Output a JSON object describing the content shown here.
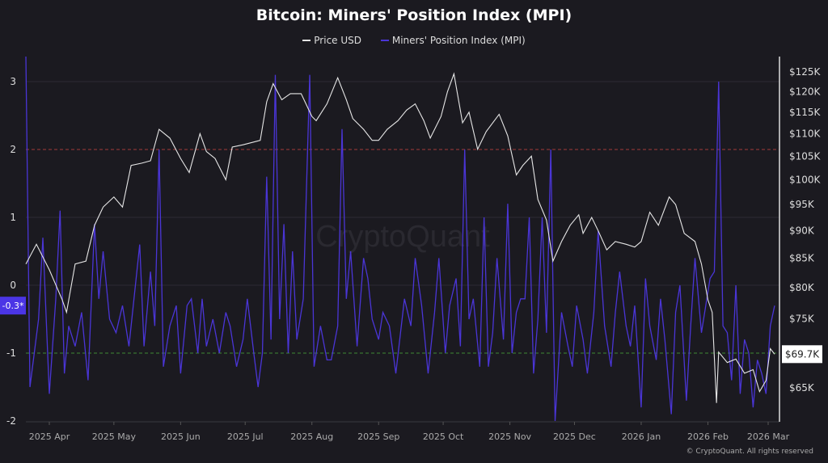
{
  "chart_data": {
    "type": "line",
    "title": "Bitcoin: Miners' Position Index (MPI)",
    "legend_position": "top-center",
    "grid": true,
    "x_ticks": [
      "2025 Apr",
      "2025 May",
      "2025 Jun",
      "2025 Jul",
      "2025 Aug",
      "2025 Sep",
      "2025 Oct",
      "2025 Nov",
      "2025 Dec",
      "2026 Jan",
      "2026 Feb",
      "2026 Mar"
    ],
    "x_tick_dates": [
      "2025-04-01",
      "2025-05-01",
      "2025-06-01",
      "2025-07-01",
      "2025-08-01",
      "2025-09-01",
      "2025-10-01",
      "2025-11-01",
      "2025-12-01",
      "2026-01-01",
      "2026-02-01",
      "2026-03-01"
    ],
    "left_axis": {
      "ticks": [
        3,
        2,
        1,
        0,
        -1,
        -2
      ],
      "ylim": [
        -2.1,
        3.3
      ]
    },
    "right_axis": {
      "scale": "log",
      "ticks": [
        "$125K",
        "$120K",
        "$115K",
        "$110K",
        "$105K",
        "$100K",
        "$95K",
        "$90K",
        "$85K",
        "$80K",
        "$75K",
        "$65K"
      ],
      "tick_values": [
        125000,
        120000,
        115000,
        110000,
        105000,
        100000,
        95000,
        90000,
        85000,
        80000,
        75000,
        65000
      ]
    },
    "reference_lines": [
      {
        "axis": "left",
        "value": 2,
        "color": "#a33a3a"
      },
      {
        "axis": "left",
        "value": -1,
        "color": "#3f8a34"
      }
    ],
    "series": [
      {
        "name": "Price USD",
        "axis": "right",
        "color": "#e6e6e6",
        "x": [
          "2025-03-21",
          "2025-03-26",
          "2025-04-01",
          "2025-04-07",
          "2025-04-09",
          "2025-04-13",
          "2025-04-18",
          "2025-04-22",
          "2025-04-26",
          "2025-05-01",
          "2025-05-05",
          "2025-05-09",
          "2025-05-14",
          "2025-05-18",
          "2025-05-22",
          "2025-05-27",
          "2025-06-01",
          "2025-06-05",
          "2025-06-10",
          "2025-06-13",
          "2025-06-17",
          "2025-06-22",
          "2025-06-25",
          "2025-06-30",
          "2025-07-04",
          "2025-07-08",
          "2025-07-11",
          "2025-07-14",
          "2025-07-18",
          "2025-07-22",
          "2025-07-27",
          "2025-08-01",
          "2025-08-03",
          "2025-08-08",
          "2025-08-13",
          "2025-08-17",
          "2025-08-20",
          "2025-08-25",
          "2025-08-29",
          "2025-09-01",
          "2025-09-05",
          "2025-09-10",
          "2025-09-14",
          "2025-09-18",
          "2025-09-22",
          "2025-09-25",
          "2025-09-30",
          "2025-10-03",
          "2025-10-06",
          "2025-10-10",
          "2025-10-13",
          "2025-10-17",
          "2025-10-21",
          "2025-10-27",
          "2025-10-31",
          "2025-11-04",
          "2025-11-07",
          "2025-11-11",
          "2025-11-14",
          "2025-11-18",
          "2025-11-21",
          "2025-11-25",
          "2025-11-29",
          "2025-12-03",
          "2025-12-05",
          "2025-12-09",
          "2025-12-12",
          "2025-12-16",
          "2025-12-20",
          "2025-12-25",
          "2025-12-29",
          "2026-01-01",
          "2026-01-05",
          "2026-01-09",
          "2026-01-14",
          "2026-01-17",
          "2026-01-21",
          "2026-01-26",
          "2026-01-29",
          "2026-02-01",
          "2026-02-03",
          "2026-02-05",
          "2026-02-06",
          "2026-02-10",
          "2026-02-14",
          "2026-02-18",
          "2026-02-22",
          "2026-02-25",
          "2026-02-28",
          "2026-03-02",
          "2026-03-04"
        ],
        "values": [
          84000,
          87500,
          83000,
          78000,
          76000,
          84000,
          84500,
          91000,
          94500,
          96500,
          94500,
          103000,
          103500,
          104000,
          111000,
          109000,
          104500,
          101500,
          110000,
          106000,
          104500,
          100000,
          107000,
          107500,
          108000,
          108500,
          117500,
          122000,
          118000,
          119500,
          119500,
          114000,
          113000,
          117000,
          123500,
          118000,
          113500,
          111000,
          108500,
          108500,
          111000,
          113000,
          115500,
          117000,
          113000,
          109000,
          114000,
          120000,
          124500,
          112500,
          115000,
          106500,
          110500,
          114500,
          109500,
          101000,
          103000,
          105000,
          96000,
          92000,
          84500,
          88000,
          91000,
          93000,
          89500,
          92500,
          90000,
          86500,
          88000,
          87500,
          87000,
          88000,
          93500,
          91000,
          96500,
          95000,
          89500,
          88000,
          84000,
          78000,
          76000,
          63000,
          70000,
          68500,
          69000,
          67000,
          67500,
          64500,
          66000,
          70500,
          69700
        ]
      },
      {
        "name": "Miners' Position Index (MPI)",
        "axis": "left",
        "color": "#4a35d6",
        "x": [
          "2025-03-21",
          "2025-03-23",
          "2025-03-27",
          "2025-03-29",
          "2025-04-01",
          "2025-04-04",
          "2025-04-06",
          "2025-04-08",
          "2025-04-10",
          "2025-04-13",
          "2025-04-16",
          "2025-04-19",
          "2025-04-22",
          "2025-04-24",
          "2025-04-26",
          "2025-04-29",
          "2025-05-02",
          "2025-05-05",
          "2025-05-08",
          "2025-05-10",
          "2025-05-13",
          "2025-05-15",
          "2025-05-18",
          "2025-05-20",
          "2025-05-22",
          "2025-05-24",
          "2025-05-27",
          "2025-05-30",
          "2025-06-01",
          "2025-06-04",
          "2025-06-06",
          "2025-06-09",
          "2025-06-11",
          "2025-06-13",
          "2025-06-16",
          "2025-06-19",
          "2025-06-22",
          "2025-06-24",
          "2025-06-27",
          "2025-06-30",
          "2025-07-02",
          "2025-07-05",
          "2025-07-07",
          "2025-07-09",
          "2025-07-11",
          "2025-07-13",
          "2025-07-15",
          "2025-07-17",
          "2025-07-19",
          "2025-07-21",
          "2025-07-23",
          "2025-07-25",
          "2025-07-28",
          "2025-07-31",
          "2025-08-02",
          "2025-08-05",
          "2025-08-08",
          "2025-08-10",
          "2025-08-13",
          "2025-08-15",
          "2025-08-17",
          "2025-08-19",
          "2025-08-22",
          "2025-08-25",
          "2025-08-27",
          "2025-08-29",
          "2025-09-01",
          "2025-09-03",
          "2025-09-06",
          "2025-09-09",
          "2025-09-13",
          "2025-09-16",
          "2025-09-18",
          "2025-09-21",
          "2025-09-24",
          "2025-09-27",
          "2025-09-29",
          "2025-10-02",
          "2025-10-04",
          "2025-10-07",
          "2025-10-09",
          "2025-10-11",
          "2025-10-13",
          "2025-10-15",
          "2025-10-18",
          "2025-10-20",
          "2025-10-22",
          "2025-10-24",
          "2025-10-26",
          "2025-10-29",
          "2025-10-31",
          "2025-11-02",
          "2025-11-04",
          "2025-11-06",
          "2025-11-08",
          "2025-11-10",
          "2025-11-12",
          "2025-11-14",
          "2025-11-16",
          "2025-11-18",
          "2025-11-20",
          "2025-11-22",
          "2025-11-25",
          "2025-11-28",
          "2025-11-30",
          "2025-12-02",
          "2025-12-05",
          "2025-12-07",
          "2025-12-10",
          "2025-12-12",
          "2025-12-15",
          "2025-12-18",
          "2025-12-20",
          "2025-12-22",
          "2025-12-25",
          "2025-12-27",
          "2025-12-29",
          "2026-01-01",
          "2026-01-03",
          "2026-01-05",
          "2026-01-08",
          "2026-01-10",
          "2026-01-12",
          "2026-01-15",
          "2026-01-17",
          "2026-01-19",
          "2026-01-22",
          "2026-01-24",
          "2026-01-26",
          "2026-01-29",
          "2026-01-31",
          "2026-02-02",
          "2026-02-04",
          "2026-02-06",
          "2026-02-08",
          "2026-02-10",
          "2026-02-12",
          "2026-02-14",
          "2026-02-16",
          "2026-02-18",
          "2026-02-20",
          "2026-02-22",
          "2026-02-24",
          "2026-02-26",
          "2026-02-28",
          "2026-03-02",
          "2026-03-04"
        ],
        "values": [
          3.4,
          -1.5,
          -0.5,
          0.7,
          -1.6,
          -0.2,
          1.1,
          -1.3,
          -0.6,
          -0.9,
          -0.4,
          -1.4,
          0.9,
          -0.2,
          0.5,
          -0.5,
          -0.7,
          -0.3,
          -0.9,
          -0.3,
          0.6,
          -0.9,
          0.2,
          -0.6,
          2.0,
          -1.2,
          -0.6,
          -0.3,
          -1.3,
          -0.3,
          -0.2,
          -1.0,
          -0.2,
          -0.9,
          -0.5,
          -1.0,
          -0.4,
          -0.6,
          -1.2,
          -0.8,
          -0.2,
          -1.0,
          -1.5,
          -1.0,
          1.6,
          -0.8,
          3.1,
          -0.5,
          0.9,
          -1.0,
          0.5,
          -0.8,
          -0.2,
          3.1,
          -1.2,
          -0.6,
          -1.1,
          -1.1,
          -0.6,
          2.3,
          -0.2,
          0.5,
          -0.9,
          0.4,
          0.1,
          -0.5,
          -0.8,
          -0.4,
          -0.6,
          -1.3,
          -0.2,
          -0.6,
          0.4,
          -0.3,
          -1.3,
          -0.4,
          0.4,
          -1.0,
          -0.3,
          0.1,
          -0.9,
          2.0,
          -0.5,
          -0.2,
          -1.2,
          1.0,
          -1.2,
          -0.7,
          0.4,
          -0.8,
          1.2,
          -1.0,
          -0.4,
          -0.2,
          -0.2,
          1.0,
          -1.3,
          -0.5,
          1.0,
          -0.7,
          2.0,
          -2.0,
          -0.4,
          -0.9,
          -1.2,
          -0.3,
          -0.8,
          -1.3,
          -0.4,
          0.8,
          -0.6,
          -1.2,
          -0.4,
          0.2,
          -0.6,
          -0.9,
          -0.3,
          -1.8,
          0.1,
          -0.6,
          -1.1,
          -0.2,
          -0.8,
          -1.9,
          -0.4,
          0.0,
          -1.7,
          -0.6,
          0.4,
          -0.7,
          -0.3,
          0.1,
          0.2,
          3.0,
          -0.6,
          -0.7,
          -1.4,
          0.0,
          -1.6,
          -0.8,
          -1.0,
          -1.8,
          -1.1,
          -1.3,
          -1.6,
          -0.6,
          -0.3
        ]
      }
    ],
    "current_labels": {
      "mpi": "-0.3*",
      "price": "$69.7K"
    },
    "watermark": "CryptoQuant"
  },
  "footer": "© CryptoQuant. All rights reserved"
}
